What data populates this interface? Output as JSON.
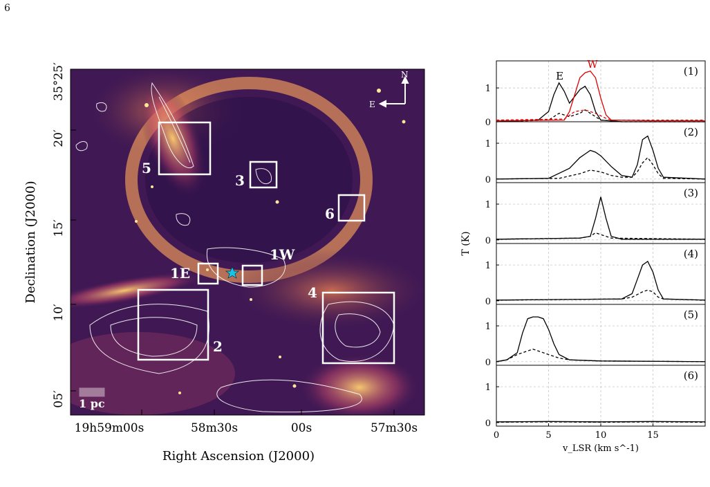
{
  "page_number": "6",
  "left_panel": {
    "xlabel": "Right Ascension (J2000)",
    "ylabel": "Declination (J2000)",
    "ra_ticks": [
      {
        "main": "19h59m00s"
      },
      {
        "main": "58m30s"
      },
      {
        "main": "00s"
      },
      {
        "main": "57m30s"
      }
    ],
    "dec_ticks": [
      "35°25′",
      "20′",
      "15′",
      "10′",
      "05′"
    ],
    "compass": {
      "north": "N",
      "east": "E"
    },
    "scale_bar": "1 pc",
    "regions": [
      {
        "label": "1E"
      },
      {
        "label": "1W"
      },
      {
        "label": "2"
      },
      {
        "label": "3"
      },
      {
        "label": "4"
      },
      {
        "label": "5"
      },
      {
        "label": "6"
      }
    ],
    "colors": {
      "image_dark": "#1c0f3d",
      "image_mid": "#8a2a6a",
      "image_bright": "#f3a24a",
      "box": "#ffffff",
      "star": "#19c3e6"
    }
  },
  "chart_data": {
    "type": "line",
    "xlabel": "v_LSR (km s^-1)",
    "ylabel": "T (K)",
    "xlim": [
      0,
      20
    ],
    "x_ticks": [
      0,
      5,
      10,
      15
    ],
    "panels": [
      {
        "label": "(1)",
        "ylim": [
          0,
          1.8
        ],
        "y_ticks": [
          0,
          1
        ],
        "series": [
          {
            "name": "E",
            "color": "#000000",
            "style": "solid",
            "x": [
              0,
              4,
              5,
              5.5,
              6,
              6.5,
              7,
              7.5,
              8,
              8.5,
              9,
              9.5,
              10,
              12,
              15,
              20
            ],
            "y": [
              0,
              0.05,
              0.3,
              0.8,
              1.15,
              0.9,
              0.55,
              0.75,
              0.95,
              1.05,
              0.8,
              0.3,
              0.05,
              0,
              0,
              0
            ]
          },
          {
            "name": "E",
            "color": "#000000",
            "style": "dashed",
            "x": [
              0,
              5,
              6,
              7,
              8,
              8.5,
              9,
              10,
              12,
              20
            ],
            "y": [
              0,
              0.05,
              0.25,
              0.15,
              0.25,
              0.35,
              0.25,
              0.05,
              0,
              0
            ]
          },
          {
            "name": "W",
            "color": "#e00000",
            "style": "solid",
            "x": [
              0,
              6.5,
              7,
              7.5,
              8,
              8.5,
              9,
              9.5,
              10,
              10.5,
              11,
              15,
              20
            ],
            "y": [
              0.03,
              0.05,
              0.3,
              0.8,
              1.3,
              1.45,
              1.5,
              1.3,
              0.7,
              0.2,
              0.05,
              0.03,
              0.03
            ]
          },
          {
            "name": "W",
            "color": "#e00000",
            "style": "dashed",
            "x": [
              0,
              6.5,
              7.5,
              8.5,
              9,
              9.5,
              10.5,
              11,
              20
            ],
            "y": [
              0.05,
              0.08,
              0.3,
              0.35,
              0.3,
              0.25,
              0.1,
              0.05,
              0.05
            ]
          }
        ]
      },
      {
        "label": "(2)",
        "ylim": [
          -0.1,
          1.6
        ],
        "y_ticks": [
          0,
          1
        ],
        "series": [
          {
            "color": "#000000",
            "style": "solid",
            "x": [
              0,
              5,
              7,
              8,
              8.5,
              9,
              9.5,
              10,
              11,
              12,
              13,
              13.5,
              14,
              14.5,
              15,
              15.5,
              16,
              20
            ],
            "y": [
              0,
              0.02,
              0.3,
              0.6,
              0.7,
              0.8,
              0.75,
              0.65,
              0.35,
              0.1,
              0.05,
              0.4,
              1.1,
              1.2,
              0.8,
              0.3,
              0.05,
              0
            ]
          },
          {
            "color": "#000000",
            "style": "dashed",
            "x": [
              0,
              6,
              8,
              9,
              10,
              11,
              12,
              13,
              13.5,
              14,
              14.5,
              15,
              15.5,
              16,
              20
            ],
            "y": [
              0,
              0.02,
              0.15,
              0.25,
              0.2,
              0.1,
              0.05,
              0.05,
              0.2,
              0.45,
              0.6,
              0.4,
              0.15,
              0.02,
              0
            ]
          }
        ]
      },
      {
        "label": "(3)",
        "ylim": [
          -0.1,
          1.6
        ],
        "y_ticks": [
          0,
          1
        ],
        "series": [
          {
            "color": "#000000",
            "style": "solid",
            "x": [
              0,
              8,
              9,
              9.5,
              10,
              10.5,
              11,
              12,
              20
            ],
            "y": [
              0.02,
              0.05,
              0.1,
              0.6,
              1.2,
              0.6,
              0.1,
              0.02,
              0.02
            ]
          },
          {
            "color": "#000000",
            "style": "dashed",
            "x": [
              0,
              8,
              9,
              9.5,
              10,
              10.5,
              11,
              20
            ],
            "y": [
              0.02,
              0.05,
              0.1,
              0.2,
              0.15,
              0.1,
              0.05,
              0.02
            ]
          }
        ]
      },
      {
        "label": "(4)",
        "ylim": [
          -0.1,
          1.6
        ],
        "y_ticks": [
          0,
          1
        ],
        "series": [
          {
            "color": "#000000",
            "style": "solid",
            "x": [
              0,
              12,
              13,
              13.5,
              14,
              14.5,
              15,
              15.5,
              16,
              20
            ],
            "y": [
              0.02,
              0.05,
              0.2,
              0.6,
              1.0,
              1.1,
              0.8,
              0.3,
              0.05,
              0.02
            ]
          },
          {
            "color": "#000000",
            "style": "dashed",
            "x": [
              0,
              12,
              13,
              14,
              14.5,
              15,
              15.5,
              16,
              20
            ],
            "y": [
              0.02,
              0.05,
              0.1,
              0.25,
              0.3,
              0.25,
              0.1,
              0.05,
              0.02
            ]
          }
        ]
      },
      {
        "label": "(5)",
        "ylim": [
          -0.1,
          1.6
        ],
        "y_ticks": [
          0,
          1
        ],
        "series": [
          {
            "color": "#000000",
            "style": "solid",
            "x": [
              0,
              1,
              2,
              2.5,
              3,
              3.5,
              4,
              4.5,
              5,
              5.5,
              6,
              7,
              10,
              20
            ],
            "y": [
              0,
              0.05,
              0.25,
              0.8,
              1.2,
              1.25,
              1.25,
              1.2,
              0.9,
              0.5,
              0.2,
              0.05,
              0.02,
              0
            ]
          },
          {
            "color": "#000000",
            "style": "dashed",
            "x": [
              0,
              1,
              2,
              3,
              3.5,
              4,
              5,
              6,
              7,
              10,
              20
            ],
            "y": [
              0,
              0.05,
              0.2,
              0.3,
              0.35,
              0.3,
              0.2,
              0.1,
              0.05,
              0.02,
              0
            ]
          }
        ]
      },
      {
        "label": "(6)",
        "ylim": [
          -0.1,
          1.6
        ],
        "y_ticks": [
          0,
          1
        ],
        "series": [
          {
            "color": "#000000",
            "style": "solid",
            "x": [
              0,
              5,
              10,
              15,
              20
            ],
            "y": [
              0.02,
              0.03,
              0.02,
              0.03,
              0.02
            ]
          },
          {
            "color": "#000000",
            "style": "dashed",
            "x": [
              0,
              5,
              10,
              15,
              20
            ],
            "y": [
              0.01,
              0.02,
              0.01,
              0.02,
              0.01
            ]
          }
        ]
      }
    ]
  }
}
